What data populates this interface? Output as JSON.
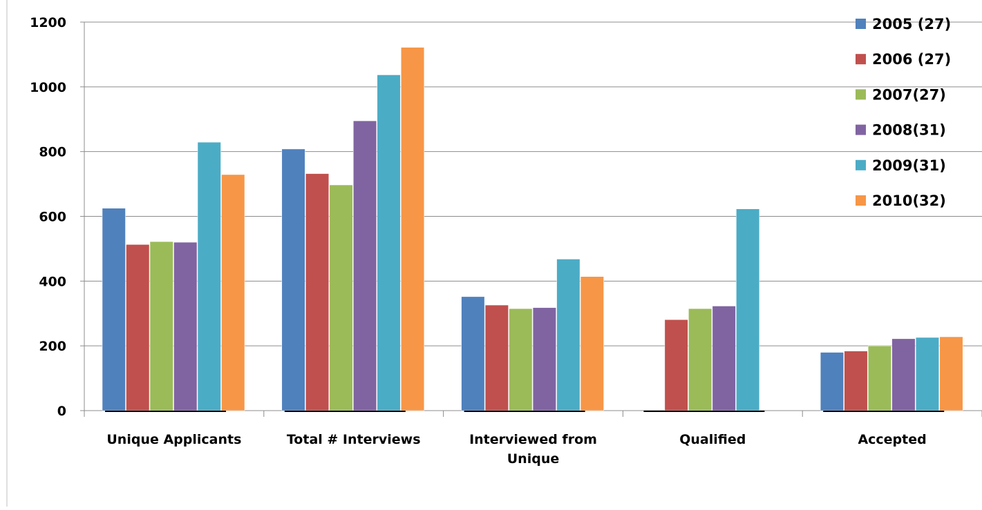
{
  "chart_data": {
    "type": "bar",
    "title": "",
    "xlabel": "",
    "ylabel": "",
    "ylim": [
      0,
      1200
    ],
    "yticks": [
      "0",
      "200",
      "400",
      "600",
      "800",
      "1000",
      "1200"
    ],
    "grid": true,
    "legend_position": "top-right",
    "categories": [
      [
        "Unique Applicants"
      ],
      [
        "Total # Interviews"
      ],
      [
        "Interviewed from",
        "Unique"
      ],
      [
        "Qualified"
      ],
      [
        "Accepted"
      ]
    ],
    "series": [
      {
        "name": "2005 (27)",
        "color": "#4F81BD",
        "values": [
          625,
          808,
          352,
          null,
          180
        ]
      },
      {
        "name": "2006 (27)",
        "color": "#C0504D",
        "values": [
          513,
          732,
          326,
          281,
          184
        ]
      },
      {
        "name": "2007(27)",
        "color": "#9BBB59",
        "values": [
          522,
          697,
          315,
          315,
          200
        ]
      },
      {
        "name": "2008(31)",
        "color": "#8064A2",
        "values": [
          520,
          895,
          318,
          323,
          222
        ]
      },
      {
        "name": "2009(31)",
        "color": "#4BACC6",
        "values": [
          829,
          1037,
          468,
          623,
          226
        ]
      },
      {
        "name": "2010(32)",
        "color": "#F79646",
        "values": [
          729,
          1122,
          414,
          null,
          228
        ]
      }
    ]
  }
}
